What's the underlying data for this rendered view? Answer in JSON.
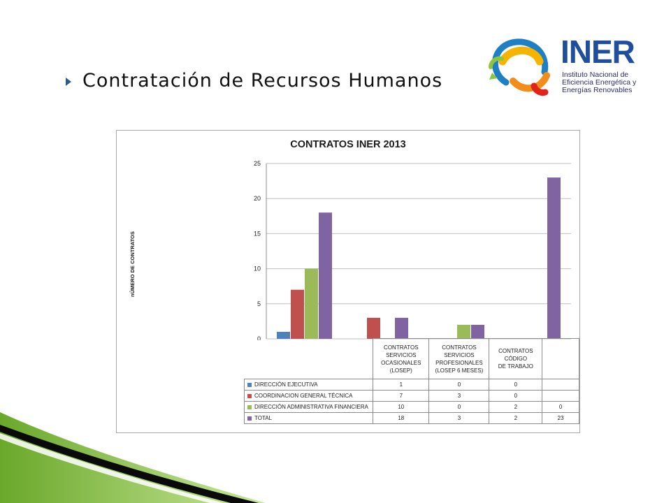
{
  "slide": {
    "title": "Contratación de Recursos Humanos"
  },
  "logo": {
    "word": "INER",
    "lines": [
      "Instituto Nacional de",
      "Eficiencia Energética y",
      "Energías Renovables"
    ]
  },
  "colors": {
    "direccion_ejecutiva": "#4f81bd",
    "coordinacion": "#c0504d",
    "administrativa": "#9bbb59",
    "total": "#8064a2",
    "gridline": "#bfbfbf",
    "green_deco": "#8cc63f"
  },
  "chart_data": {
    "type": "bar",
    "title": "CONTRATOS INER 2013",
    "xlabel": "",
    "ylabel": "nÚMERO DE CONTRATOS",
    "ylim": [
      0,
      25
    ],
    "yticks": [
      "0",
      "5",
      "10",
      "15",
      "20",
      "25"
    ],
    "grid": true,
    "legend": "data-table-below",
    "categories": [
      "CONTRATOS SERVICIOS OCASIONALES (LOSEP)",
      "CONTRATOS SERVICIOS PROFESIONALES (LOSEP 6 MESES)",
      "CONTRATOS CÓDIGO DE TRABAJO",
      ""
    ],
    "category_lines": [
      [
        "CONTRATOS",
        "SERVICIOS",
        "OCASIONALES (LOSEP)"
      ],
      [
        "CONTRATOS",
        "SERVICIOS",
        "PROFESIONALES",
        "(LOSEP 6 MESES)"
      ],
      [
        "CONTRATOS CÓDIGO",
        "DE TRABAJO"
      ],
      []
    ],
    "series": [
      {
        "name": "DIRECCIÓN EJECUTIVA",
        "values": [
          1,
          0,
          0,
          null
        ],
        "labels": [
          "1",
          "0",
          "0",
          ""
        ]
      },
      {
        "name": "COORDINACION GENERAL TÉCNICA",
        "values": [
          7,
          3,
          0,
          null
        ],
        "labels": [
          "7",
          "3",
          "0",
          ""
        ]
      },
      {
        "name": "DIRECCIÓN ADMINISTRATIVA FINANCIERA",
        "values": [
          10,
          0,
          2,
          0
        ],
        "labels": [
          "10",
          "0",
          "2",
          "0"
        ]
      },
      {
        "name": "TOTAL",
        "values": [
          18,
          3,
          2,
          23
        ],
        "labels": [
          "18",
          "3",
          "2",
          "23"
        ]
      }
    ]
  }
}
